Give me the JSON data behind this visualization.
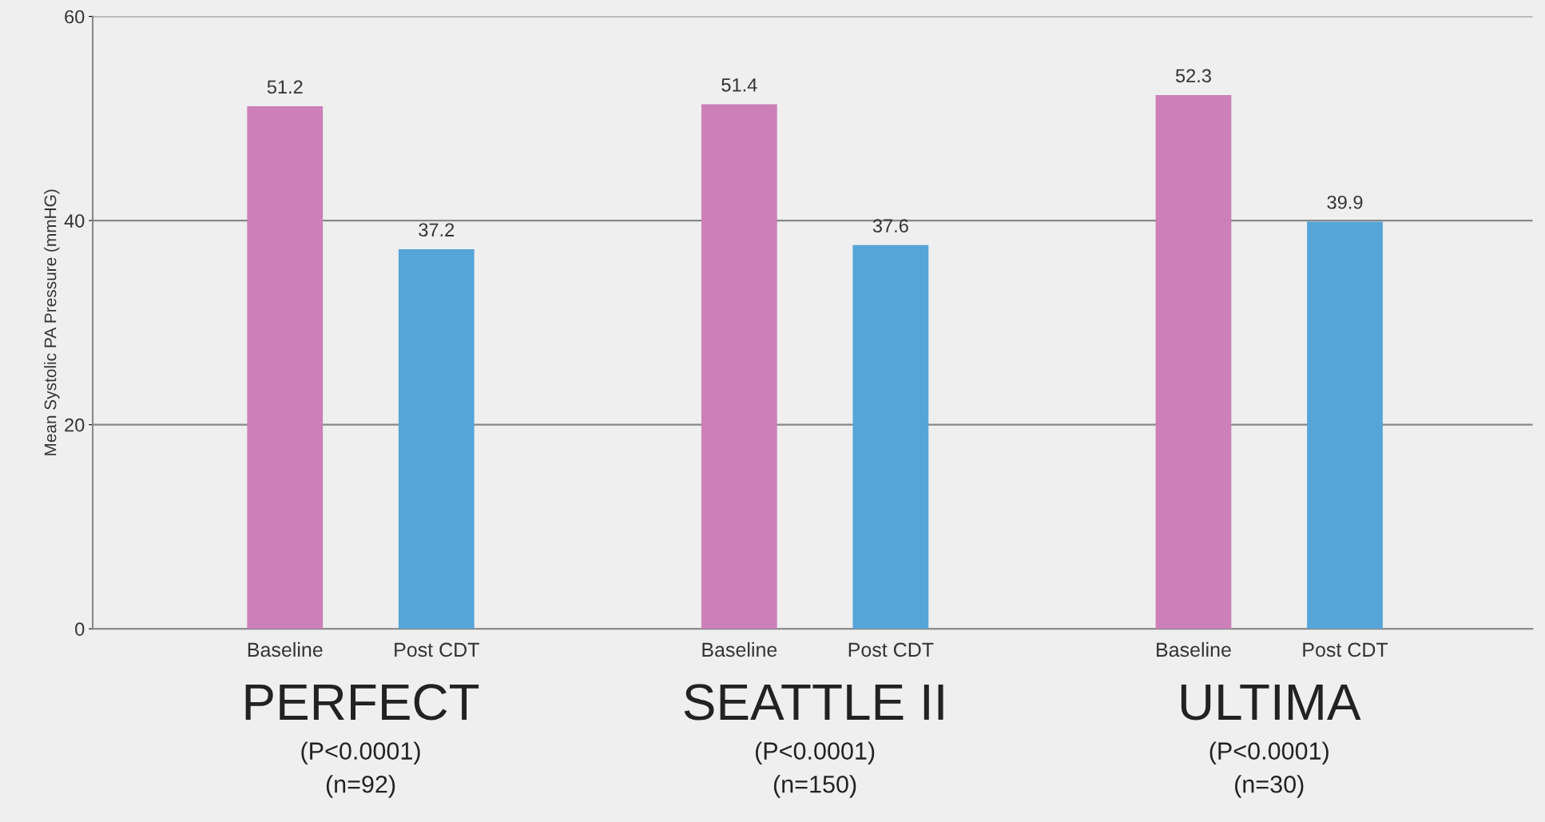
{
  "chart_data": {
    "type": "bar",
    "ylabel": "Mean Systolic PA Pressure (mmHG)",
    "categories": [
      "Baseline",
      "Post CDT",
      null,
      "Baseline",
      "Post CDT",
      null,
      "Baseline",
      "Post CDT"
    ],
    "values": [
      51.2,
      37.2,
      null,
      51.4,
      37.6,
      null,
      52.3,
      39.9
    ],
    "colors": [
      "#cc7fb8",
      "#56a5d8",
      null,
      "#cc7fb8",
      "#56a5d8",
      null,
      "#cc7fb8",
      "#56a5d8"
    ],
    "ylim": [
      0,
      60
    ],
    "yticks": [
      0,
      20,
      40,
      60
    ],
    "grid": "y",
    "data_labels": true,
    "annotations": [
      "PERFECT",
      "(P<0.0001)",
      "(n=92)",
      "SEATTLE II",
      "(P<0.0001)",
      "(n=150)",
      "ULTIMA",
      "(P<0.0001)",
      "(n=30)"
    ]
  }
}
